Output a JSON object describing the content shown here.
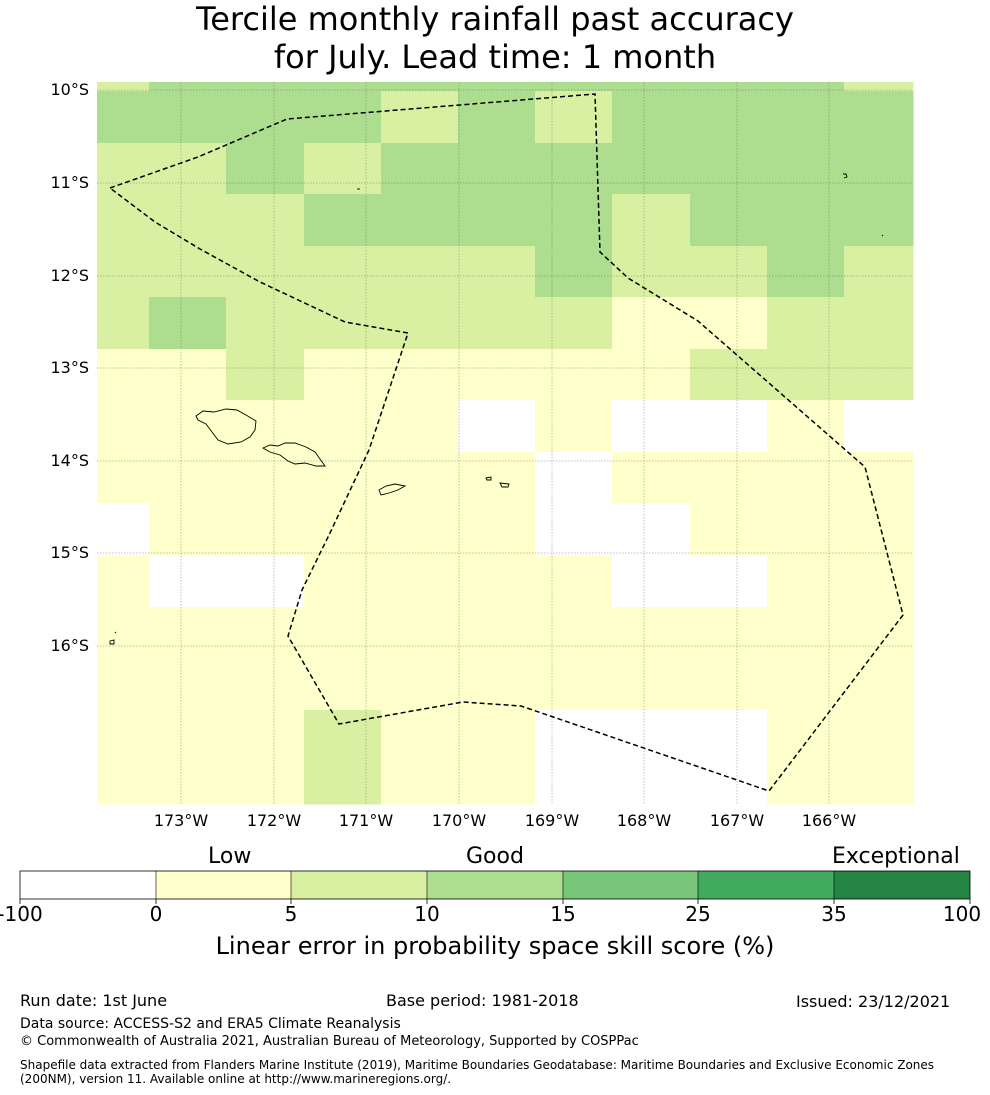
{
  "title": {
    "line1": "Tercile monthly rainfall past accuracy",
    "line2": "for July. Lead time: 1 month"
  },
  "map": {
    "lat_labels": [
      "10°S",
      "11°S",
      "12°S",
      "13°S",
      "14°S",
      "15°S",
      "16°S"
    ],
    "lon_labels": [
      "173°W",
      "172°W",
      "171°W",
      "170°W",
      "169°W",
      "168°W",
      "167°W",
      "166°W"
    ],
    "gridlines": true,
    "eez_boundary_style": "dashed",
    "cell_classes_by_row": [
      [
        2,
        3,
        3,
        3,
        3,
        3,
        3,
        3,
        3,
        3,
        2
      ],
      [
        3,
        3,
        3,
        3,
        2,
        3,
        2,
        3,
        3,
        3,
        3
      ],
      [
        2,
        2,
        3,
        2,
        3,
        3,
        3,
        3,
        3,
        3,
        3
      ],
      [
        2,
        2,
        2,
        3,
        3,
        3,
        3,
        2,
        3,
        3,
        3
      ],
      [
        2,
        2,
        2,
        2,
        2,
        2,
        3,
        2,
        2,
        3,
        2
      ],
      [
        2,
        3,
        2,
        2,
        2,
        2,
        2,
        1,
        1,
        2,
        2
      ],
      [
        1,
        1,
        2,
        1,
        1,
        1,
        1,
        1,
        2,
        2,
        2
      ],
      [
        1,
        1,
        1,
        1,
        1,
        0,
        1,
        0,
        0,
        1,
        0
      ],
      [
        1,
        1,
        1,
        1,
        1,
        1,
        0,
        1,
        1,
        1,
        1
      ],
      [
        0,
        1,
        1,
        1,
        1,
        1,
        0,
        0,
        1,
        1,
        1
      ],
      [
        1,
        0,
        0,
        1,
        1,
        1,
        1,
        0,
        0,
        1,
        1
      ],
      [
        1,
        1,
        1,
        1,
        1,
        1,
        1,
        1,
        1,
        1,
        1
      ],
      [
        1,
        1,
        1,
        2,
        1,
        1,
        0,
        0,
        0,
        1,
        1
      ]
    ]
  },
  "colorbar": {
    "categories": [
      "Low",
      "Good",
      "Exceptional"
    ],
    "ticks": [
      "-100",
      "0",
      "5",
      "10",
      "15",
      "25",
      "35",
      "100"
    ],
    "colors": [
      "#ffffff",
      "#ffffcc",
      "#d9f0a3",
      "#addd8e",
      "#78c679",
      "#41ab5d",
      "#238443"
    ],
    "title": "Linear error in probability space skill score (%)"
  },
  "info": {
    "run_date": "Run date: 1st June",
    "base_period": "Base period: 1981-2018",
    "issued": "Issued: 23/12/2021",
    "data_source": "Data source: ACCESS-S2 and ERA5 Climate Reanalysis",
    "copyright": "© Commonwealth of Australia 2021, Australian Bureau of Meteorology, Supported by COSPPac",
    "shapefile_line1": "Shapefile data extracted from Flanders Marine Institute (2019), Maritime Boundaries Geodatabase: Maritime Boundaries and Exclusive Economic Zones",
    "shapefile_line2": "(200NM), version 11. Available online at http://www.marineregions.org/."
  }
}
